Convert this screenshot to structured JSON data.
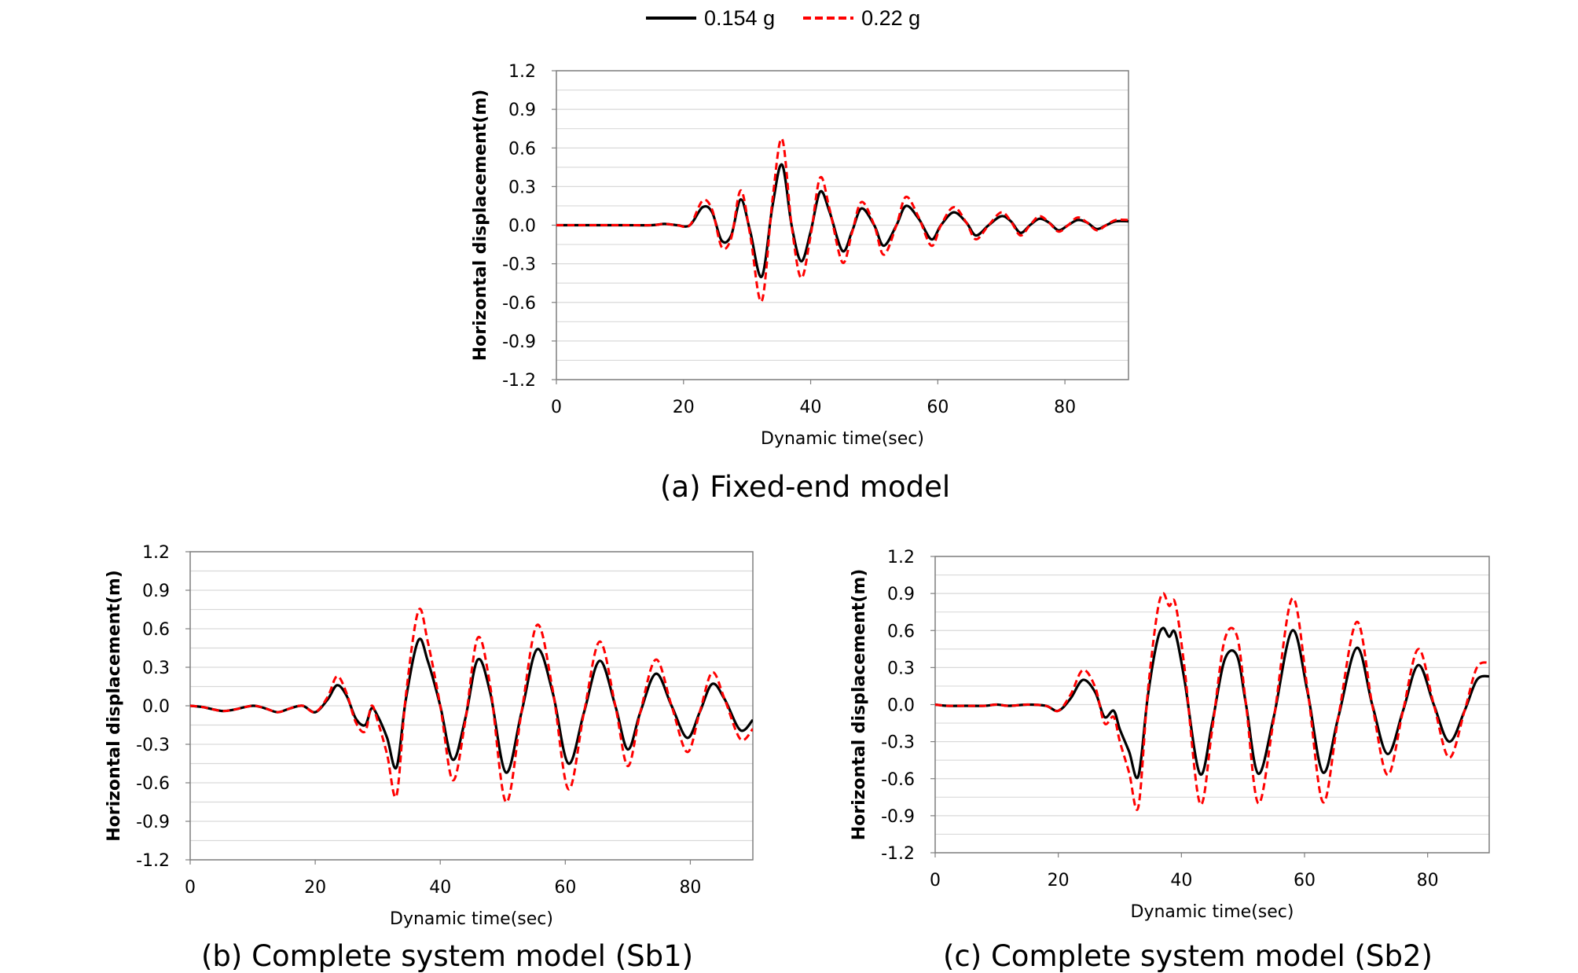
{
  "legend": [
    {
      "name": "0.154 g",
      "color": "#000000",
      "dash": "solid"
    },
    {
      "name": "0.22 g",
      "color": "#ff0000",
      "dash": "dashed"
    }
  ],
  "chart_data": [
    {
      "type": "line",
      "caption": "(a) Fixed-end model",
      "xlabel": "Dynamic time(sec)",
      "ylabel": "Horizontal displacement(m)",
      "xlim": [
        0,
        90
      ],
      "ylim": [
        -1.2,
        1.2
      ],
      "xticks": [
        0,
        20,
        40,
        60,
        80
      ],
      "yticks": [
        1.2,
        0.9,
        0.6,
        0.3,
        0.0,
        -0.3,
        -0.6,
        -0.9,
        -1.2
      ],
      "grid": true,
      "series": [
        {
          "name": "0.154 g",
          "color": "#000000",
          "x": [
            0,
            10,
            15,
            17,
            19,
            21,
            23,
            24.5,
            26,
            27.5,
            29,
            30.5,
            32.3,
            34,
            35.5,
            37,
            38.5,
            40,
            41.5,
            43,
            45,
            46.5,
            48,
            50,
            51.5,
            53.5,
            55,
            57,
            59,
            60.5,
            62.5,
            64.5,
            66,
            68,
            70,
            71.5,
            73,
            74.5,
            76,
            77.5,
            79,
            80.5,
            82,
            83.5,
            85,
            86.5,
            88,
            90
          ],
          "y": [
            0,
            0,
            0,
            0.01,
            0,
            0,
            0.14,
            0.1,
            -0.12,
            -0.08,
            0.2,
            -0.05,
            -0.4,
            0.15,
            0.47,
            0.0,
            -0.28,
            -0.05,
            0.26,
            0.1,
            -0.2,
            -0.05,
            0.13,
            0.0,
            -0.16,
            0.0,
            0.15,
            0.05,
            -0.11,
            0.0,
            0.1,
            0.02,
            -0.08,
            0.0,
            0.07,
            0.03,
            -0.06,
            0.0,
            0.05,
            0.02,
            -0.04,
            0.0,
            0.04,
            0.02,
            -0.03,
            0.0,
            0.03,
            0.03
          ]
        },
        {
          "name": "0.22 g",
          "color": "#ff0000",
          "x": [
            0,
            10,
            15,
            17,
            19,
            21,
            23,
            24.5,
            26,
            27.5,
            29,
            30.5,
            32.3,
            34,
            35.5,
            37,
            38.5,
            40,
            41.5,
            43,
            45,
            46.5,
            48,
            50,
            51.5,
            53.5,
            55,
            57,
            59,
            60.5,
            62.5,
            64.5,
            66,
            68,
            70,
            71.5,
            73,
            74.5,
            76,
            77.5,
            79,
            80.5,
            82,
            83.5,
            85,
            86.5,
            88,
            90
          ],
          "y": [
            0,
            0,
            0,
            0.01,
            0,
            0,
            0.19,
            0.12,
            -0.17,
            -0.1,
            0.27,
            -0.08,
            -0.59,
            0.2,
            0.67,
            0.0,
            -0.41,
            -0.08,
            0.37,
            0.12,
            -0.29,
            -0.06,
            0.18,
            0.0,
            -0.23,
            0.0,
            0.22,
            0.06,
            -0.16,
            0.0,
            0.14,
            0.02,
            -0.11,
            0.0,
            0.1,
            0.03,
            -0.08,
            0.0,
            0.07,
            0.02,
            -0.05,
            0.0,
            0.06,
            0.02,
            -0.04,
            0.0,
            0.04,
            0.04
          ]
        }
      ]
    },
    {
      "type": "line",
      "caption": "(b) Complete system model (Sb1)",
      "xlabel": "Dynamic time(sec)",
      "ylabel": "Horizontal displacement(m)",
      "xlim": [
        0,
        90
      ],
      "ylim": [
        -1.2,
        1.2
      ],
      "xticks": [
        0,
        20,
        40,
        60,
        80
      ],
      "yticks": [
        1.2,
        0.9,
        0.6,
        0.3,
        0.0,
        -0.3,
        -0.6,
        -0.9,
        -1.2
      ],
      "grid": true,
      "series": [
        {
          "name": "0.154 g",
          "color": "#000000",
          "x": [
            0,
            2,
            5,
            7,
            10,
            12,
            14,
            16,
            18,
            20,
            22,
            23.5,
            25,
            26.5,
            28,
            29,
            30,
            31.5,
            33,
            34.5,
            36.5,
            38,
            40,
            42,
            44,
            46,
            48,
            50.5,
            53,
            55.5,
            58,
            60.5,
            63,
            65.5,
            68,
            70,
            72,
            74.5,
            77,
            79.5,
            81.5,
            83.5,
            85.5,
            88,
            90
          ],
          "y": [
            0,
            -0.01,
            -0.04,
            -0.03,
            0,
            -0.02,
            -0.05,
            -0.02,
            0,
            -0.05,
            0.05,
            0.16,
            0.08,
            -0.1,
            -0.15,
            -0.02,
            -0.08,
            -0.25,
            -0.48,
            0.05,
            0.51,
            0.35,
            0.0,
            -0.42,
            -0.1,
            0.36,
            0.1,
            -0.52,
            -0.05,
            0.44,
            0.1,
            -0.45,
            -0.05,
            0.35,
            0.0,
            -0.34,
            -0.05,
            0.25,
            0.0,
            -0.25,
            -0.05,
            0.17,
            0.05,
            -0.19,
            -0.11
          ]
        },
        {
          "name": "0.22 g",
          "color": "#ff0000",
          "x": [
            0,
            2,
            5,
            7,
            10,
            12,
            14,
            16,
            18,
            20,
            22,
            23.5,
            25,
            26.5,
            28,
            29,
            30,
            31.5,
            33,
            34.5,
            36.5,
            38,
            40,
            42,
            44,
            46,
            48,
            50.5,
            53,
            55.5,
            58,
            60.5,
            63,
            65.5,
            68,
            70,
            72,
            74.5,
            77,
            79.5,
            81.5,
            83.5,
            85.5,
            88,
            90
          ],
          "y": [
            0,
            -0.01,
            -0.04,
            -0.03,
            0,
            -0.02,
            -0.05,
            -0.02,
            0,
            -0.05,
            0.07,
            0.23,
            0.1,
            -0.13,
            -0.2,
            0.0,
            -0.12,
            -0.38,
            -0.7,
            0.08,
            0.74,
            0.5,
            0.0,
            -0.58,
            -0.12,
            0.53,
            0.15,
            -0.75,
            -0.05,
            0.63,
            0.12,
            -0.65,
            -0.05,
            0.5,
            0.0,
            -0.47,
            -0.05,
            0.36,
            0.0,
            -0.36,
            -0.05,
            0.26,
            0.05,
            -0.26,
            -0.18
          ]
        }
      ]
    },
    {
      "type": "line",
      "caption": "(c) Complete system model (Sb2)",
      "xlabel": "Dynamic time(sec)",
      "ylabel": "Horizontal displacement(m)",
      "xlim": [
        0,
        90
      ],
      "ylim": [
        -1.2,
        1.2
      ],
      "xticks": [
        0,
        20,
        40,
        60,
        80
      ],
      "yticks": [
        1.2,
        0.9,
        0.6,
        0.3,
        0.0,
        -0.3,
        -0.6,
        -0.9,
        -1.2
      ],
      "grid": true,
      "series": [
        {
          "name": "0.154 g",
          "color": "#000000",
          "x": [
            0,
            2,
            5,
            8,
            10,
            12,
            15,
            18,
            20,
            22,
            24,
            26,
            27.5,
            29,
            30,
            31.5,
            33,
            34.5,
            36,
            37,
            38,
            39,
            40.5,
            43,
            45,
            47,
            49,
            50.5,
            52.5,
            55,
            58,
            60.5,
            63,
            65.5,
            68.5,
            71,
            73.5,
            76,
            78.5,
            81,
            83.5,
            86,
            88,
            90
          ],
          "y": [
            0,
            -0.01,
            -0.01,
            -0.01,
            0,
            -0.01,
            0,
            -0.01,
            -0.05,
            0.05,
            0.2,
            0.1,
            -0.1,
            -0.05,
            -0.2,
            -0.38,
            -0.58,
            0.05,
            0.5,
            0.62,
            0.55,
            0.58,
            0.2,
            -0.56,
            -0.15,
            0.36,
            0.4,
            0.0,
            -0.56,
            -0.1,
            0.6,
            0.1,
            -0.55,
            -0.1,
            0.46,
            0.0,
            -0.4,
            -0.05,
            0.32,
            0.0,
            -0.3,
            -0.05,
            0.2,
            0.23
          ]
        },
        {
          "name": "0.22 g",
          "color": "#ff0000",
          "x": [
            0,
            2,
            5,
            8,
            10,
            12,
            15,
            18,
            20,
            22,
            24,
            26,
            27.5,
            29,
            30,
            31.5,
            33,
            34.5,
            36,
            37,
            38,
            39,
            40.5,
            43,
            45,
            47,
            49,
            50.5,
            52.5,
            55,
            58,
            60.5,
            63,
            65.5,
            68.5,
            71,
            73.5,
            76,
            78.5,
            81,
            83.5,
            86,
            88,
            90
          ],
          "y": [
            0,
            -0.01,
            -0.01,
            -0.01,
            0,
            -0.01,
            0,
            -0.01,
            -0.05,
            0.08,
            0.28,
            0.14,
            -0.15,
            -0.1,
            -0.3,
            -0.55,
            -0.83,
            0.08,
            0.72,
            0.9,
            0.8,
            0.82,
            0.3,
            -0.8,
            -0.2,
            0.52,
            0.56,
            0.0,
            -0.8,
            -0.12,
            0.86,
            0.12,
            -0.79,
            -0.1,
            0.67,
            0.0,
            -0.57,
            -0.05,
            0.45,
            0.0,
            -0.43,
            -0.05,
            0.3,
            0.34
          ]
        }
      ]
    }
  ]
}
